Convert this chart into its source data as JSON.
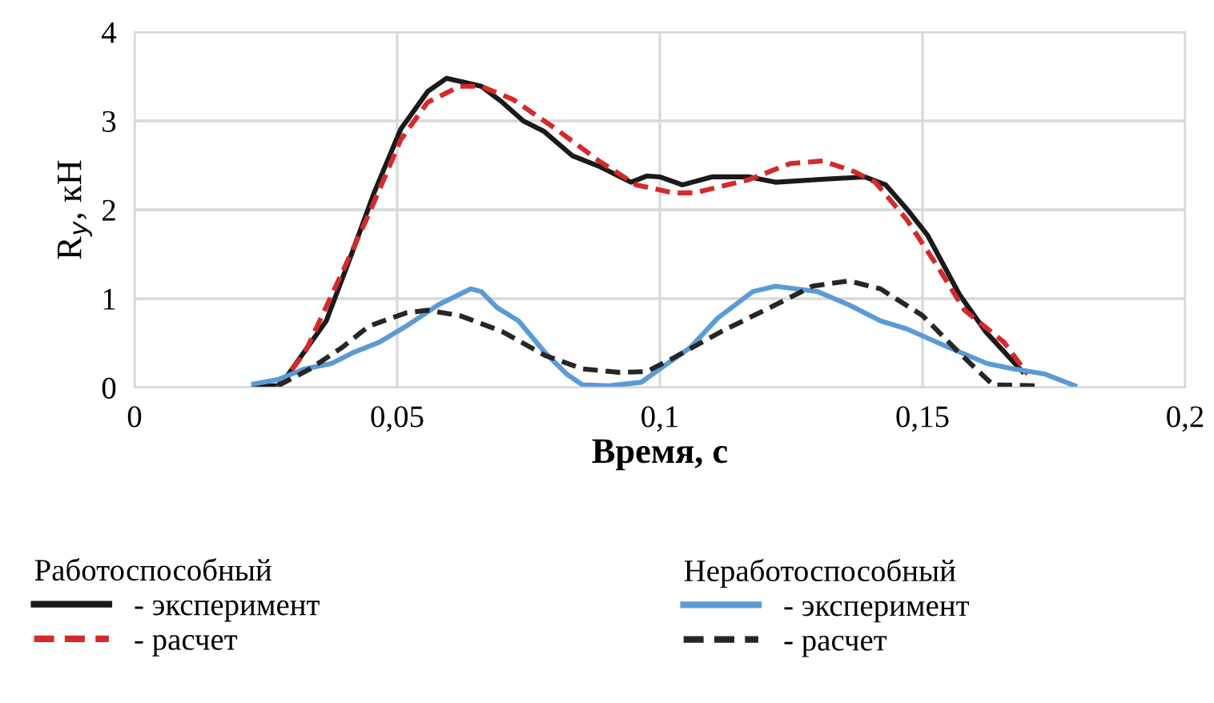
{
  "chart_data": {
    "type": "line",
    "xlabel": "Время, с",
    "ylabel": "R$_{y}$, кН",
    "xlim": [
      0,
      0.2
    ],
    "xticks": [
      {
        "value": 0,
        "label": "0"
      },
      {
        "value": 0.05,
        "label": "0,05"
      },
      {
        "value": 0.1,
        "label": "0,1"
      },
      {
        "value": 0.15,
        "label": "0,15"
      },
      {
        "value": 0.2,
        "label": "0,2"
      }
    ],
    "ylim": [
      0,
      4
    ],
    "yticks": [
      0,
      1,
      2,
      3,
      4
    ],
    "grid": true,
    "legend": "bottom",
    "annotations": [
      "Работоспособный",
      "Неработоспособный"
    ],
    "series": [
      {
        "name": "- эксперимент",
        "color": "#1a1a1a",
        "line_style": "solid",
        "x": [
          0.0227,
          0.0273,
          0.0293,
          0.0365,
          0.0415,
          0.0456,
          0.0507,
          0.0558,
          0.0594,
          0.0624,
          0.066,
          0.07,
          0.074,
          0.078,
          0.0833,
          0.0884,
          0.0945,
          0.0975,
          0.1,
          0.1043,
          0.1099,
          0.117,
          0.122,
          0.13,
          0.139,
          0.143,
          0.147,
          0.151,
          0.157,
          0.162,
          0.169
        ],
        "values": [
          0.02,
          0.02,
          0.15,
          0.75,
          1.53,
          2.19,
          2.91,
          3.33,
          3.48,
          3.44,
          3.39,
          3.21,
          3.0,
          2.88,
          2.61,
          2.49,
          2.31,
          2.38,
          2.37,
          2.28,
          2.37,
          2.37,
          2.31,
          2.34,
          2.37,
          2.28,
          2.01,
          1.71,
          1.05,
          0.63,
          0.18
        ]
      },
      {
        "name": "- расчет",
        "color": "#d42a2a",
        "line_style": "dashed",
        "x": [
          0.0273,
          0.0324,
          0.0395,
          0.0446,
          0.0507,
          0.0558,
          0.0619,
          0.066,
          0.0721,
          0.0802,
          0.0884,
          0.0955,
          0.1026,
          0.1066,
          0.117,
          0.1248,
          0.131,
          0.137,
          0.141,
          0.147,
          0.153,
          0.158,
          0.1655,
          0.167,
          0.17
        ],
        "values": [
          0,
          0.39,
          1.29,
          1.95,
          2.79,
          3.21,
          3.39,
          3.39,
          3.24,
          2.91,
          2.55,
          2.28,
          2.19,
          2.19,
          2.34,
          2.52,
          2.55,
          2.43,
          2.31,
          1.89,
          1.35,
          0.87,
          0.51,
          0.39,
          0.15
        ]
      },
      {
        "name": "- эксперимент",
        "color": "#5b9bd5",
        "line_style": "solid",
        "x": [
          0.0227,
          0.0273,
          0.0324,
          0.0375,
          0.0415,
          0.0466,
          0.0517,
          0.0578,
          0.064,
          0.066,
          0.069,
          0.0731,
          0.0782,
          0.0823,
          0.0853,
          0.0904,
          0.0965,
          0.1,
          0.1058,
          0.111,
          0.1177,
          0.122,
          0.13,
          0.136,
          0.142,
          0.147,
          0.155,
          0.1623,
          0.1673,
          0.1734,
          0.179
        ],
        "values": [
          0.04,
          0.09,
          0.21,
          0.27,
          0.39,
          0.51,
          0.69,
          0.93,
          1.11,
          1.08,
          0.9,
          0.75,
          0.39,
          0.15,
          0.03,
          0.02,
          0.06,
          0.21,
          0.45,
          0.78,
          1.08,
          1.14,
          1.08,
          0.93,
          0.75,
          0.66,
          0.45,
          0.27,
          0.21,
          0.15,
          0.02
        ]
      },
      {
        "name": "- расчет",
        "color": "#262626",
        "line_style": "dashed",
        "x": [
          0.0273,
          0.0334,
          0.0395,
          0.0446,
          0.0517,
          0.0558,
          0.0619,
          0.07,
          0.0782,
          0.0853,
          0.0924,
          0.0975,
          0.1025,
          0.1117,
          0.122,
          0.129,
          0.136,
          0.142,
          0.15,
          0.157,
          0.1634,
          0.1714
        ],
        "values": [
          0.02,
          0.21,
          0.45,
          0.69,
          0.84,
          0.87,
          0.81,
          0.63,
          0.36,
          0.21,
          0.17,
          0.18,
          0.33,
          0.63,
          0.93,
          1.14,
          1.2,
          1.11,
          0.81,
          0.39,
          0.03,
          0.02
        ]
      }
    ]
  }
}
